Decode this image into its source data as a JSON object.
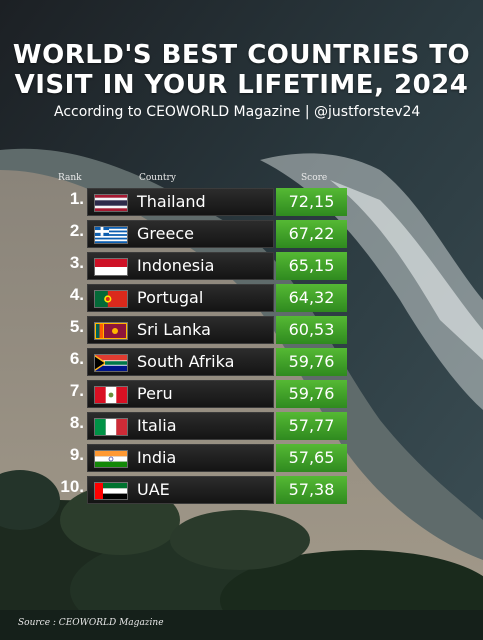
{
  "title_lines": [
    "WORLD'S BEST COUNTRIES TO",
    "VISIT IN YOUR LIFETIME, 2024"
  ],
  "subtitle": "According to CEOWORLD Magazine | @justforstev24",
  "headers": {
    "rank": "Rank",
    "country": "Country",
    "score": "Score"
  },
  "source": "Source : CEOWORLD Magazine",
  "colors": {
    "score_bg": "#4caf33",
    "row_bg": "#1e1e1e"
  },
  "chart_data": {
    "type": "table",
    "columns": [
      "Rank",
      "Country",
      "Score"
    ],
    "rows": [
      {
        "rank": "1.",
        "country": "Thailand",
        "score": "72,15",
        "flag": "thailand-flag-icon"
      },
      {
        "rank": "2.",
        "country": "Greece",
        "score": "67,22",
        "flag": "greece-flag-icon"
      },
      {
        "rank": "3.",
        "country": "Indonesia",
        "score": "65,15",
        "flag": "indonesia-flag-icon"
      },
      {
        "rank": "4.",
        "country": "Portugal",
        "score": "64,32",
        "flag": "portugal-flag-icon"
      },
      {
        "rank": "5.",
        "country": "Sri Lanka",
        "score": "60,53",
        "flag": "sri-lanka-flag-icon"
      },
      {
        "rank": "6.",
        "country": "South Afrika",
        "score": "59,76",
        "flag": "south-africa-flag-icon"
      },
      {
        "rank": "7.",
        "country": "Peru",
        "score": "59,76",
        "flag": "peru-flag-icon"
      },
      {
        "rank": "8.",
        "country": "Italia",
        "score": "57,77",
        "flag": "italy-flag-icon"
      },
      {
        "rank": "9.",
        "country": "India",
        "score": "57,65",
        "flag": "india-flag-icon"
      },
      {
        "rank": "10.",
        "country": "UAE",
        "score": "57,38",
        "flag": "uae-flag-icon"
      }
    ]
  }
}
